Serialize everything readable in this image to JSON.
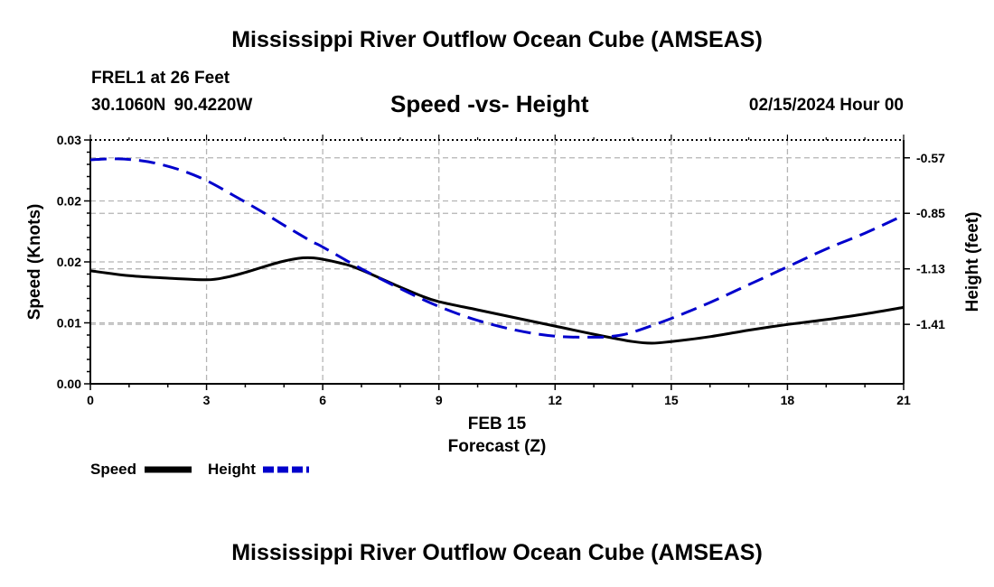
{
  "page": {
    "title": "Mississippi River Outflow Ocean Cube (AMSEAS)",
    "station": "FREL1 at 26 Feet",
    "coords": "30.1060N  90.4220W",
    "subtitle": "Speed -vs- Height",
    "datetime": "02/15/2024 Hour 00",
    "footer_title": "Mississippi River Outflow Ocean Cube (AMSEAS)"
  },
  "colors": {
    "speed": "#000000",
    "height": "#0000cc",
    "grid": "#b4b4b4"
  },
  "chart_data": {
    "type": "line",
    "title": "Speed -vs- Height",
    "xlabel": "Forecast (Z)",
    "xsublabel": "FEB 15",
    "ylabel": "Speed (Knots)",
    "y2label": "Height (feet)",
    "xlim": [
      0,
      21
    ],
    "ylim": [
      0,
      0.03
    ],
    "y2lim": [
      -1.71,
      -0.48
    ],
    "x_ticks": [
      0,
      3,
      6,
      9,
      12,
      15,
      18,
      21
    ],
    "x_tick_labels": [
      "0",
      "3",
      "6",
      "9",
      "12",
      "15",
      "18",
      "21"
    ],
    "y_ticks": [
      0,
      0.0075,
      0.015,
      0.0225,
      0.03
    ],
    "y_tick_labels": [
      "0.00",
      "0.01",
      "0.02",
      "0.02",
      "0.03"
    ],
    "y2_ticks": [
      -1.41,
      -1.13,
      -0.85,
      -0.57
    ],
    "y2_tick_labels": [
      "-1.41",
      "-1.13",
      "-0.85",
      "-0.57"
    ],
    "grid": true,
    "legend": [
      {
        "label": "Speed",
        "style": "solid"
      },
      {
        "label": "Height",
        "style": "dashed"
      }
    ],
    "series": [
      {
        "name": "Speed",
        "axis": "left",
        "style": "solid",
        "x": [
          0,
          1,
          2,
          3,
          3.5,
          4,
          5,
          5.7,
          6.5,
          7,
          8,
          8.5,
          9,
          10,
          11,
          12,
          13,
          14,
          14.5,
          15,
          16,
          17,
          18,
          19,
          20,
          21
        ],
        "values": [
          0.0139,
          0.0133,
          0.013,
          0.0128,
          0.0131,
          0.0137,
          0.0151,
          0.0155,
          0.0148,
          0.014,
          0.0119,
          0.0109,
          0.0101,
          0.0091,
          0.0081,
          0.0071,
          0.0061,
          0.0052,
          0.005,
          0.0052,
          0.0058,
          0.0066,
          0.0073,
          0.0079,
          0.0086,
          0.0094
        ]
      },
      {
        "name": "Height",
        "axis": "right",
        "style": "dashed",
        "x": [
          0,
          0.7,
          1.5,
          2.3,
          3,
          3.7,
          4.5,
          5,
          5.7,
          6,
          7,
          8,
          9,
          10,
          11,
          12,
          13,
          13.5,
          14,
          15,
          16,
          17,
          18,
          19,
          20,
          21
        ],
        "values": [
          -0.58,
          -0.575,
          -0.59,
          -0.63,
          -0.685,
          -0.76,
          -0.85,
          -0.91,
          -0.99,
          -1.02,
          -1.13,
          -1.23,
          -1.32,
          -1.39,
          -1.44,
          -1.47,
          -1.475,
          -1.47,
          -1.45,
          -1.38,
          -1.3,
          -1.21,
          -1.12,
          -1.03,
          -0.95,
          -0.86
        ]
      }
    ]
  }
}
